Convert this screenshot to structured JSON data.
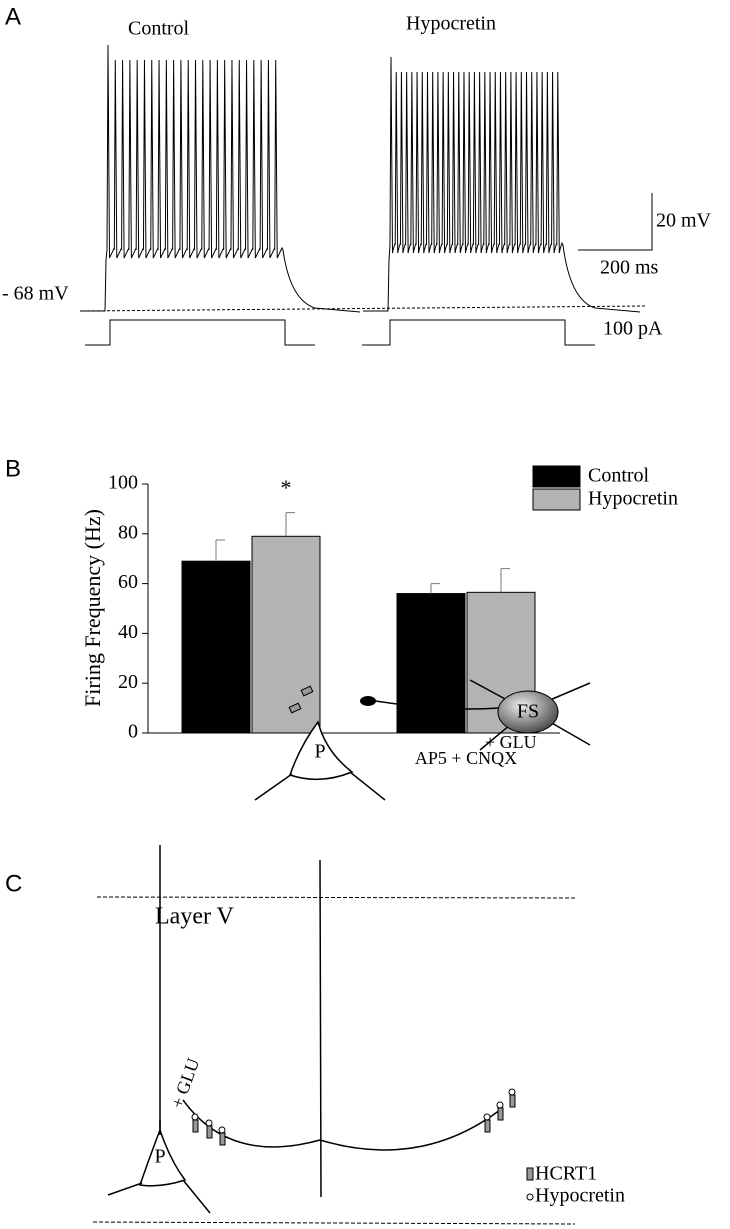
{
  "panel_labels": [
    "A",
    "B",
    "C"
  ],
  "traces": {
    "control": "Control",
    "hypocretin": "Hypocretin",
    "resting": "- 68 mV",
    "scale_voltage": "20 mV",
    "scale_time": "200 ms",
    "current": "100 pA"
  },
  "chart_data": {
    "type": "bar",
    "ylabel": "Firing  Frequency (Hz)",
    "categories": [
      null,
      "AP5 + CNQX"
    ],
    "series": [
      {
        "name": "Control",
        "color": "#000000",
        "values": [
          69,
          56
        ],
        "errors": [
          8.5,
          4
        ]
      },
      {
        "name": "Hypocretin",
        "color": "#b3b3b3",
        "values": [
          79,
          56.5
        ],
        "errors": [
          9.5,
          9.5
        ]
      }
    ],
    "annotation": "*",
    "ylim": [
      0,
      100
    ],
    "yticks": [
      0,
      20,
      40,
      60,
      80,
      100
    ],
    "legend": "upper right"
  },
  "diagram": {
    "layer": "Layer V",
    "nodes": [
      "P",
      "P",
      "FS"
    ],
    "glu": [
      "+ GLU",
      "+ GLU"
    ],
    "legend": [
      "HCRT1",
      "Hypocretin"
    ]
  }
}
